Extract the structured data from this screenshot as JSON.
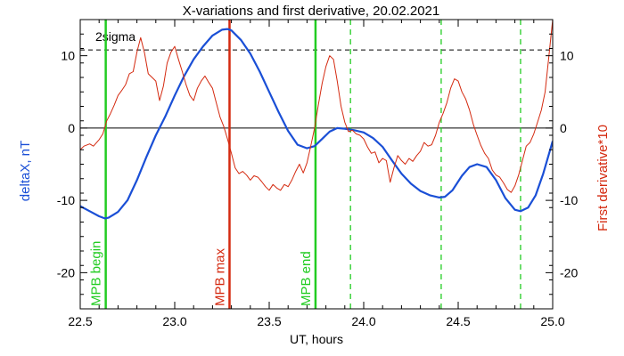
{
  "chart_data": {
    "type": "line",
    "title": "X-variations and first derivative, 20.02.2021",
    "xlabel": "UT, hours",
    "ylabel_left": "deltaX, nT",
    "ylabel_right": "First derivative*10",
    "xlim": [
      22.5,
      25.0
    ],
    "ylim": [
      -25,
      15
    ],
    "x_ticks": [
      22.5,
      23.0,
      23.5,
      24.0,
      24.5,
      25.0
    ],
    "x_tick_labels": [
      "22.5",
      "23.0",
      "23.5",
      "24.0",
      "24.5",
      "25.0"
    ],
    "y_ticks": [
      -20,
      -10,
      0,
      10
    ],
    "y_tick_labels_left": [
      "-20",
      "-10",
      "0",
      "10"
    ],
    "y_tick_labels_right": [
      "-20",
      "-10",
      "0",
      "10"
    ],
    "colors": {
      "deltaX": "#1a4fd6",
      "derivative": "#d42a10",
      "mpb_green": "#22cc22",
      "mpb_max_red": "#d42a10",
      "ylabel_left": "#1a4fd6",
      "ylabel_right": "#d42a10"
    },
    "threshold": {
      "label": "2sigma",
      "value": 10.8
    },
    "zero_line": 0,
    "vertical_lines": [
      {
        "x": 22.635,
        "label": "MPB begin",
        "color": "#22cc22",
        "style": "solid"
      },
      {
        "x": 23.29,
        "label": "MPB max",
        "color": "#d42a10",
        "style": "solid"
      },
      {
        "x": 23.745,
        "label": "MPB end",
        "color": "#22cc22",
        "style": "solid"
      },
      {
        "x": 23.93,
        "label": "",
        "color": "#22cc22",
        "style": "dashed"
      },
      {
        "x": 24.41,
        "label": "",
        "color": "#22cc22",
        "style": "dashed"
      },
      {
        "x": 24.83,
        "label": "",
        "color": "#22cc22",
        "style": "dashed"
      }
    ],
    "series": [
      {
        "key": "deltaX",
        "x": [
          22.5,
          22.55,
          22.6,
          22.63,
          22.65,
          22.7,
          22.75,
          22.8,
          22.85,
          22.9,
          22.95,
          23.0,
          23.05,
          23.1,
          23.15,
          23.2,
          23.25,
          23.28,
          23.3,
          23.35,
          23.4,
          23.45,
          23.5,
          23.55,
          23.6,
          23.65,
          23.7,
          23.74,
          23.78,
          23.82,
          23.86,
          23.9,
          23.95,
          24.0,
          24.05,
          24.1,
          24.15,
          24.2,
          24.25,
          24.3,
          24.35,
          24.4,
          24.43,
          24.47,
          24.52,
          24.56,
          24.6,
          24.65,
          24.7,
          24.75,
          24.8,
          24.83,
          24.87,
          24.91,
          24.95,
          25.0
        ],
        "y": [
          -10.8,
          -11.5,
          -12.2,
          -12.5,
          -12.4,
          -11.6,
          -10.0,
          -7.2,
          -4.0,
          -1.0,
          1.6,
          4.5,
          7.2,
          9.5,
          11.3,
          12.8,
          13.6,
          13.7,
          13.5,
          12.2,
          10.3,
          7.8,
          5.0,
          2.2,
          -0.4,
          -2.3,
          -2.8,
          -2.5,
          -1.5,
          -0.5,
          0.0,
          -0.1,
          -0.3,
          -0.6,
          -1.4,
          -2.6,
          -4.5,
          -6.3,
          -7.7,
          -8.7,
          -9.3,
          -9.6,
          -9.5,
          -8.6,
          -6.6,
          -5.4,
          -5.0,
          -5.4,
          -7.2,
          -9.7,
          -11.3,
          -11.5,
          -11.0,
          -9.3,
          -6.3,
          -1.8
        ]
      },
      {
        "key": "derivative",
        "x": [
          22.5,
          22.52,
          22.55,
          22.57,
          22.6,
          22.62,
          22.64,
          22.66,
          22.68,
          22.7,
          22.72,
          22.74,
          22.76,
          22.78,
          22.8,
          22.82,
          22.84,
          22.86,
          22.88,
          22.9,
          22.92,
          22.94,
          22.96,
          22.98,
          23.0,
          23.02,
          23.04,
          23.06,
          23.08,
          23.1,
          23.12,
          23.14,
          23.16,
          23.18,
          23.2,
          23.22,
          23.24,
          23.26,
          23.28,
          23.3,
          23.32,
          23.34,
          23.36,
          23.38,
          23.4,
          23.42,
          23.44,
          23.46,
          23.48,
          23.5,
          23.52,
          23.54,
          23.56,
          23.58,
          23.6,
          23.62,
          23.64,
          23.66,
          23.68,
          23.7,
          23.72,
          23.74,
          23.76,
          23.78,
          23.8,
          23.82,
          23.84,
          23.86,
          23.88,
          23.9,
          23.92,
          23.94,
          23.96,
          23.98,
          24.0,
          24.02,
          24.04,
          24.06,
          24.08,
          24.1,
          24.12,
          24.14,
          24.16,
          24.18,
          24.2,
          24.22,
          24.24,
          24.26,
          24.28,
          24.3,
          24.32,
          24.34,
          24.36,
          24.38,
          24.4,
          24.42,
          24.44,
          24.46,
          24.48,
          24.5,
          24.52,
          24.54,
          24.56,
          24.58,
          24.6,
          24.62,
          24.64,
          24.66,
          24.68,
          24.7,
          24.72,
          24.74,
          24.76,
          24.78,
          24.8,
          24.82,
          24.84,
          24.86,
          24.88,
          24.9,
          24.92,
          24.94,
          24.96,
          24.98,
          25.0
        ],
        "y": [
          -3.0,
          -2.5,
          -2.2,
          -2.5,
          -1.6,
          -0.8,
          1.0,
          2.0,
          3.2,
          4.5,
          5.2,
          6.0,
          7.5,
          7.8,
          10.5,
          12.5,
          10.4,
          7.5,
          7.0,
          6.5,
          3.8,
          5.8,
          9.0,
          10.5,
          11.3,
          9.5,
          7.8,
          6.0,
          4.5,
          3.8,
          5.5,
          6.5,
          7.2,
          6.3,
          5.5,
          3.5,
          1.5,
          0.2,
          -1.6,
          -3.5,
          -5.5,
          -6.3,
          -6.0,
          -6.5,
          -7.2,
          -6.6,
          -6.8,
          -7.4,
          -8.1,
          -8.6,
          -7.8,
          -8.3,
          -8.6,
          -7.8,
          -8.1,
          -7.2,
          -6.0,
          -5.0,
          -6.2,
          -4.8,
          -2.5,
          0.0,
          3.2,
          6.2,
          8.5,
          10.0,
          9.5,
          6.5,
          3.0,
          0.8,
          -0.5,
          -0.3,
          -0.8,
          -1.0,
          -1.5,
          -2.6,
          -3.5,
          -3.3,
          -4.8,
          -4.2,
          -4.5,
          -7.5,
          -5.5,
          -3.8,
          -4.5,
          -5.0,
          -4.2,
          -4.6,
          -3.8,
          -3.2,
          -2.0,
          -2.5,
          -2.3,
          -1.0,
          0.8,
          2.0,
          3.5,
          5.5,
          6.8,
          6.5,
          5.0,
          4.0,
          2.5,
          0.5,
          -1.0,
          -2.4,
          -3.5,
          -4.2,
          -5.8,
          -6.5,
          -6.8,
          -7.6,
          -8.5,
          -8.9,
          -8.0,
          -6.5,
          -4.5,
          -2.5,
          -2.0,
          -0.8,
          0.8,
          2.5,
          5.0,
          10.0,
          15.0
        ]
      }
    ]
  }
}
